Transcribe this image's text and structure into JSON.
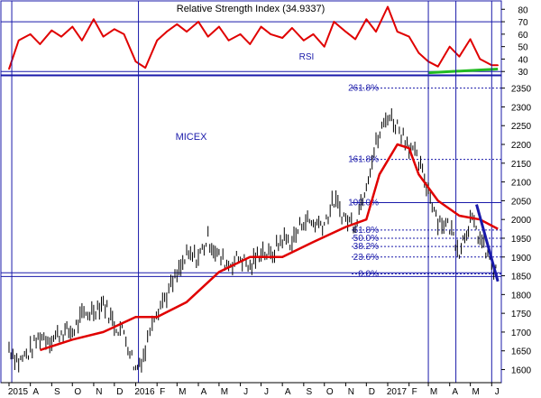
{
  "chart_data": [
    {
      "type": "line",
      "title": "Relative Strength Index (34.9337)",
      "series_label": "RSI",
      "y_ticks": [
        30,
        40,
        50,
        60,
        70,
        80
      ],
      "ylim": [
        28,
        86
      ],
      "colors": {
        "rsi": "#e00000",
        "trend": "#22bb22",
        "ref": "#1a1aaa"
      },
      "reference_lines": [
        30,
        70
      ],
      "x": [
        "2015-07-01",
        "2015-07-15",
        "2015-08-01",
        "2015-08-15",
        "2015-09-01",
        "2015-09-15",
        "2015-10-01",
        "2015-10-15",
        "2015-11-01",
        "2015-11-15",
        "2015-12-01",
        "2015-12-15",
        "2016-01-01",
        "2016-01-15",
        "2016-02-01",
        "2016-02-15",
        "2016-03-01",
        "2016-03-15",
        "2016-04-01",
        "2016-04-15",
        "2016-05-01",
        "2016-05-15",
        "2016-06-01",
        "2016-06-15",
        "2016-07-01",
        "2016-07-15",
        "2016-08-01",
        "2016-08-15",
        "2016-09-01",
        "2016-09-15",
        "2016-10-01",
        "2016-10-15",
        "2016-11-01",
        "2016-11-15",
        "2016-12-01",
        "2016-12-15",
        "2017-01-01",
        "2017-01-15",
        "2017-02-01",
        "2017-02-15",
        "2017-03-01",
        "2017-03-15",
        "2017-04-01",
        "2017-04-15",
        "2017-05-01",
        "2017-05-15",
        "2017-06-01",
        "2017-06-10"
      ],
      "values": [
        32,
        55,
        60,
        52,
        63,
        58,
        66,
        55,
        72,
        58,
        64,
        60,
        38,
        33,
        55,
        62,
        68,
        62,
        70,
        58,
        66,
        55,
        60,
        52,
        66,
        60,
        57,
        65,
        55,
        60,
        50,
        70,
        62,
        56,
        72,
        62,
        82,
        62,
        58,
        45,
        38,
        34,
        50,
        42,
        56,
        40,
        35,
        35
      ],
      "trendline": {
        "x": [
          "2017-03-01",
          "2017-06-10"
        ],
        "values": [
          29,
          32
        ]
      }
    },
    {
      "type": "line",
      "title": "MICEX",
      "y_ticks": [
        1600,
        1650,
        1700,
        1750,
        1800,
        1850,
        1900,
        1950,
        2000,
        2050,
        2100,
        2150,
        2200,
        2250,
        2300,
        2350
      ],
      "ylim": [
        1570,
        2378
      ],
      "x_ticks": [
        "2015",
        "A",
        "S",
        "O",
        "N",
        "D",
        "2016",
        "F",
        "M",
        "A",
        "M",
        "J",
        "J",
        "A",
        "S",
        "O",
        "N",
        "D",
        "2017",
        "F",
        "M",
        "A",
        "M",
        "J"
      ],
      "colors": {
        "price": "#000000",
        "ma": "#e00000",
        "fib": "#1a1aaa",
        "downtrend": "#1a1aaa"
      },
      "price_series": {
        "x": [
          "2015-07-01",
          "2015-07-15",
          "2015-08-01",
          "2015-08-15",
          "2015-09-01",
          "2015-09-15",
          "2015-10-01",
          "2015-10-15",
          "2015-11-01",
          "2015-11-15",
          "2015-12-01",
          "2015-12-15",
          "2016-01-01",
          "2016-01-15",
          "2016-01-25",
          "2016-02-15",
          "2016-03-01",
          "2016-03-15",
          "2016-04-01",
          "2016-04-15",
          "2016-05-01",
          "2016-05-15",
          "2016-06-01",
          "2016-06-15",
          "2016-07-01",
          "2016-07-15",
          "2016-08-01",
          "2016-08-15",
          "2016-09-01",
          "2016-09-15",
          "2016-10-01",
          "2016-10-15",
          "2016-11-01",
          "2016-11-15",
          "2016-12-01",
          "2016-12-15",
          "2017-01-01",
          "2017-01-15",
          "2017-02-01",
          "2017-02-15",
          "2017-03-01",
          "2017-03-15",
          "2017-04-01",
          "2017-04-15",
          "2017-05-01",
          "2017-05-15",
          "2017-06-01",
          "2017-06-10"
        ],
        "values": [
          1660,
          1620,
          1650,
          1690,
          1680,
          1700,
          1700,
          1740,
          1760,
          1780,
          1720,
          1700,
          1600,
          1650,
          1740,
          1800,
          1850,
          1900,
          1900,
          1950,
          1900,
          1880,
          1900,
          1870,
          1920,
          1900,
          1950,
          1940,
          2000,
          1990,
          1990,
          2050,
          2000,
          1990,
          2100,
          2200,
          2280,
          2250,
          2200,
          2150,
          2080,
          2000,
          1980,
          1920,
          2000,
          1950,
          1880,
          1845
        ]
      },
      "moving_average": {
        "x": [
          "2015-08-15",
          "2015-10-01",
          "2015-11-15",
          "2016-01-01",
          "2016-02-01",
          "2016-03-15",
          "2016-05-01",
          "2016-06-15",
          "2016-08-01",
          "2016-09-15",
          "2016-11-01",
          "2016-12-01",
          "2016-12-20",
          "2017-01-15",
          "2017-02-01",
          "2017-02-15",
          "2017-03-15",
          "2017-04-15",
          "2017-05-15",
          "2017-06-10"
        ],
        "values": [
          1652,
          1680,
          1700,
          1740,
          1740,
          1780,
          1860,
          1900,
          1900,
          1940,
          1980,
          2000,
          2120,
          2200,
          2190,
          2120,
          2050,
          2010,
          2000,
          1975
        ]
      },
      "downtrend": {
        "x": [
          "2017-05-10",
          "2017-06-10"
        ],
        "values": [
          2040,
          1835
        ]
      },
      "fibonacci": [
        {
          "label": "261.8%",
          "value": 2350
        },
        {
          "label": "161.8%",
          "value": 2160
        },
        {
          "label": "100.0%",
          "value": 2045
        },
        {
          "label": "61.8%",
          "value": 1972
        },
        {
          "label": "50.0%",
          "value": 1950
        },
        {
          "label": "38.2%",
          "value": 1928
        },
        {
          "label": "23.6%",
          "value": 1900
        },
        {
          "label": "0.0%",
          "value": 1855
        }
      ],
      "horizontal_lines": [
        1858,
        1848
      ]
    }
  ]
}
